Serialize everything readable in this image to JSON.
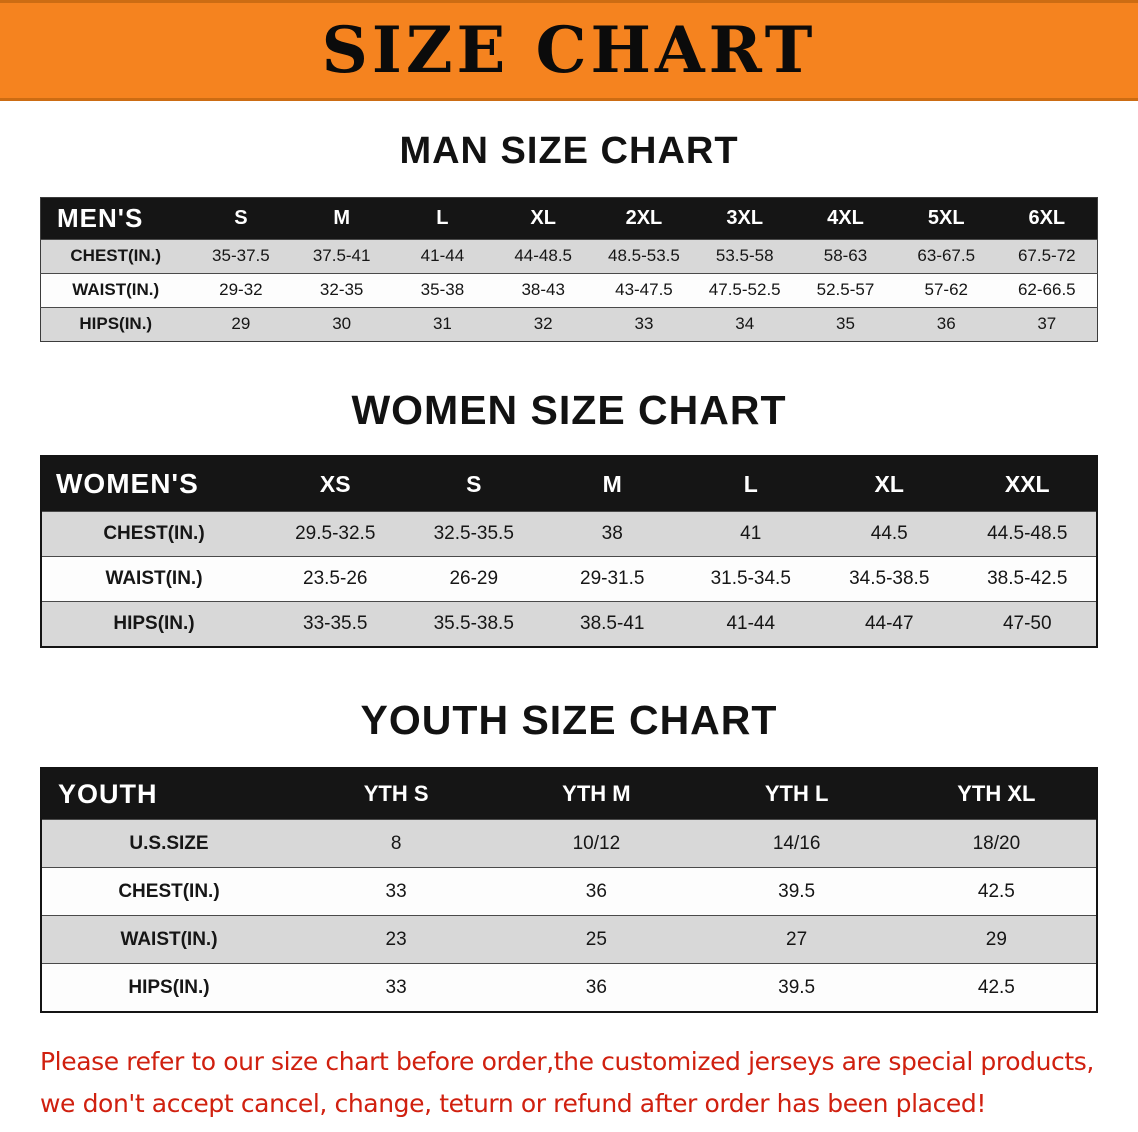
{
  "banner": {
    "title": "SIZE CHART",
    "bg_color": "#f5831f",
    "text_color": "#0b0b0b"
  },
  "sections": [
    {
      "id": "men",
      "heading": "MAN SIZE CHART",
      "header_label": "MEN'S",
      "columns": [
        "S",
        "M",
        "L",
        "XL",
        "2XL",
        "3XL",
        "4XL",
        "5XL",
        "6XL"
      ],
      "rows": [
        {
          "label": "CHEST(IN.)",
          "values": [
            "35-37.5",
            "37.5-41",
            "41-44",
            "44-48.5",
            "48.5-53.5",
            "53.5-58",
            "58-63",
            "63-67.5",
            "67.5-72"
          ]
        },
        {
          "label": "WAIST(IN.)",
          "values": [
            "29-32",
            "32-35",
            "35-38",
            "38-43",
            "43-47.5",
            "47.5-52.5",
            "52.5-57",
            "57-62",
            "62-66.5"
          ]
        },
        {
          "label": "HIPS(IN.)",
          "values": [
            "29",
            "30",
            "31",
            "32",
            "33",
            "34",
            "35",
            "36",
            "37"
          ]
        }
      ]
    },
    {
      "id": "women",
      "heading": "WOMEN SIZE CHART",
      "header_label": "WOMEN'S",
      "columns": [
        "XS",
        "S",
        "M",
        "L",
        "XL",
        "XXL"
      ],
      "rows": [
        {
          "label": "CHEST(IN.)",
          "values": [
            "29.5-32.5",
            "32.5-35.5",
            "38",
            "41",
            "44.5",
            "44.5-48.5"
          ]
        },
        {
          "label": "WAIST(IN.)",
          "values": [
            "23.5-26",
            "26-29",
            "29-31.5",
            "31.5-34.5",
            "34.5-38.5",
            "38.5-42.5"
          ]
        },
        {
          "label": "HIPS(IN.)",
          "values": [
            "33-35.5",
            "35.5-38.5",
            "38.5-41",
            "41-44",
            "44-47",
            "47-50"
          ]
        }
      ]
    },
    {
      "id": "youth",
      "heading": "YOUTH SIZE CHART",
      "header_label": "YOUTH",
      "columns": [
        "YTH S",
        "YTH M",
        "YTH L",
        "YTH XL"
      ],
      "rows": [
        {
          "label": "U.S.SIZE",
          "values": [
            "8",
            "10/12",
            "14/16",
            "18/20"
          ]
        },
        {
          "label": "CHEST(IN.)",
          "values": [
            "33",
            "36",
            "39.5",
            "42.5"
          ]
        },
        {
          "label": "WAIST(IN.)",
          "values": [
            "23",
            "25",
            "27",
            "29"
          ]
        },
        {
          "label": "HIPS(IN.)",
          "values": [
            "33",
            "36",
            "39.5",
            "42.5"
          ]
        }
      ]
    }
  ],
  "footer": {
    "line1": "Please refer to our size chart before order,the customized jerseys are special products,",
    "line2": "we don't accept cancel, change, teturn or refund after order has been placed!",
    "text_color": "#d0200f"
  }
}
